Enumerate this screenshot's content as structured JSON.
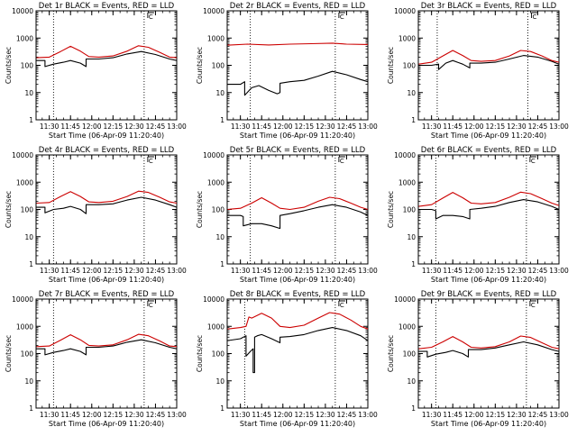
{
  "chart_data": [
    {
      "type": "line",
      "title": "Det 1r BLACK = Events, RED = LLD",
      "xlabel": "Start Time (06-Apr-09 11:20:40)",
      "ylabel": "Counts/sec",
      "x_ticks": [
        "11:30",
        "11:45",
        "12:00",
        "12:15",
        "12:30",
        "12:45",
        "13:00"
      ],
      "y_ticks": [
        "1",
        "10",
        "100",
        "1000",
        "10000"
      ],
      "xlim": [
        "11:20:40",
        "13:00:00"
      ],
      "ylim": [
        1,
        10000
      ],
      "y_scale": "log",
      "markers": [
        "11:33",
        "12:37"
      ],
      "corner_label": "C",
      "series": [
        {
          "color": "#000000",
          "x": [
            "11:21",
            "11:27",
            "11:27",
            "11:33",
            "11:40",
            "11:45",
            "11:52",
            "11:56",
            "11:56",
            "12:05",
            "12:15",
            "12:25",
            "12:35",
            "12:45",
            "12:55",
            "13:00"
          ],
          "values": [
            150,
            150,
            90,
            110,
            130,
            150,
            120,
            90,
            170,
            170,
            190,
            260,
            320,
            250,
            170,
            150
          ]
        },
        {
          "color": "#cc0000",
          "x": [
            "11:21",
            "11:30",
            "11:38",
            "11:45",
            "11:52",
            "11:58",
            "12:05",
            "12:15",
            "12:25",
            "12:33",
            "12:40",
            "12:48",
            "12:55",
            "13:00"
          ],
          "values": [
            190,
            200,
            320,
            500,
            330,
            210,
            200,
            220,
            330,
            520,
            460,
            300,
            200,
            190
          ]
        }
      ]
    },
    {
      "type": "line",
      "title": "Det 2r BLACK = Events, RED = LLD",
      "xlabel": "Start Time (06-Apr-09 11:20:40)",
      "ylabel": "Counts/sec",
      "x_ticks": [
        "11:30",
        "11:45",
        "12:00",
        "12:15",
        "12:30",
        "12:45",
        "13:00"
      ],
      "y_ticks": [
        "1",
        "10",
        "100",
        "1000",
        "10000"
      ],
      "xlim": [
        "11:20:40",
        "13:00:00"
      ],
      "ylim": [
        1,
        10000
      ],
      "y_scale": "log",
      "markers": [
        "11:37",
        "12:37"
      ],
      "corner_label": "C",
      "series": [
        {
          "color": "#000000",
          "x": [
            "11:21",
            "11:30",
            "11:33",
            "11:33",
            "11:38",
            "11:43",
            "11:50",
            "11:56",
            "11:58",
            "11:58",
            "12:05",
            "12:15",
            "12:25",
            "12:35",
            "12:45",
            "12:55",
            "13:00"
          ],
          "values": [
            20,
            20,
            25,
            8,
            15,
            18,
            12,
            9,
            10,
            22,
            25,
            28,
            40,
            60,
            45,
            30,
            25
          ]
        },
        {
          "color": "#cc0000",
          "x": [
            "11:21",
            "11:35",
            "11:50",
            "12:05",
            "12:20",
            "12:35",
            "12:45",
            "13:00"
          ],
          "values": [
            550,
            600,
            560,
            600,
            620,
            650,
            600,
            580
          ]
        }
      ]
    },
    {
      "type": "line",
      "title": "Det 3r BLACK = Events, RED = LLD",
      "xlabel": "Start Time (06-Apr-09 11:20:40)",
      "ylabel": "Counts/sec",
      "x_ticks": [
        "11:30",
        "11:45",
        "12:00",
        "12:15",
        "12:30",
        "12:45",
        "13:00"
      ],
      "y_ticks": [
        "1",
        "10",
        "100",
        "1000",
        "10000"
      ],
      "xlim": [
        "11:20:40",
        "13:00:00"
      ],
      "ylim": [
        1,
        10000
      ],
      "y_scale": "log",
      "markers": [
        "11:34",
        "12:38"
      ],
      "corner_label": "C",
      "series": [
        {
          "color": "#000000",
          "x": [
            "11:21",
            "11:30",
            "11:35",
            "11:35",
            "11:40",
            "11:45",
            "11:52",
            "11:57",
            "11:57",
            "12:05",
            "12:15",
            "12:25",
            "12:35",
            "12:45",
            "12:55",
            "13:00"
          ],
          "values": [
            100,
            100,
            110,
            70,
            120,
            150,
            110,
            80,
            120,
            120,
            130,
            170,
            230,
            200,
            140,
            110
          ]
        },
        {
          "color": "#cc0000",
          "x": [
            "11:21",
            "11:30",
            "11:38",
            "11:45",
            "11:52",
            "11:58",
            "12:05",
            "12:15",
            "12:25",
            "12:33",
            "12:40",
            "12:48",
            "12:55",
            "13:00"
          ],
          "values": [
            110,
            130,
            220,
            350,
            230,
            150,
            140,
            150,
            220,
            350,
            320,
            220,
            150,
            130
          ]
        }
      ]
    },
    {
      "type": "line",
      "title": "Det 4r BLACK = Events, RED = LLD",
      "xlabel": "Start Time (06-Apr-09 11:20:40)",
      "ylabel": "Counts/sec",
      "x_ticks": [
        "11:30",
        "11:45",
        "12:00",
        "12:15",
        "12:30",
        "12:45",
        "13:00"
      ],
      "y_ticks": [
        "1",
        "10",
        "100",
        "1000",
        "10000"
      ],
      "xlim": [
        "11:20:40",
        "13:00:00"
      ],
      "ylim": [
        1,
        10000
      ],
      "y_scale": "log",
      "markers": [
        "11:33",
        "12:37"
      ],
      "corner_label": "C",
      "series": [
        {
          "color": "#000000",
          "x": [
            "11:21",
            "11:27",
            "11:27",
            "11:33",
            "11:40",
            "11:45",
            "11:52",
            "11:56",
            "11:56",
            "12:05",
            "12:15",
            "12:25",
            "12:35",
            "12:45",
            "12:55",
            "13:00"
          ],
          "values": [
            120,
            120,
            75,
            100,
            110,
            130,
            100,
            70,
            150,
            150,
            160,
            220,
            280,
            220,
            150,
            120
          ]
        },
        {
          "color": "#cc0000",
          "x": [
            "11:21",
            "11:30",
            "11:38",
            "11:45",
            "11:52",
            "11:58",
            "12:05",
            "12:15",
            "12:25",
            "12:33",
            "12:40",
            "12:48",
            "12:55",
            "13:00"
          ],
          "values": [
            170,
            180,
            300,
            450,
            300,
            190,
            180,
            200,
            300,
            470,
            420,
            280,
            190,
            170
          ]
        }
      ]
    },
    {
      "type": "line",
      "title": "Det 5r BLACK = Events, RED = LLD",
      "xlabel": "Start Time (06-Apr-09 11:20:40)",
      "ylabel": "Counts/sec",
      "x_ticks": [
        "11:30",
        "11:45",
        "12:00",
        "12:15",
        "12:30",
        "12:45",
        "13:00"
      ],
      "y_ticks": [
        "1",
        "10",
        "100",
        "1000",
        "10000"
      ],
      "xlim": [
        "11:20:40",
        "13:00:00"
      ],
      "ylim": [
        1,
        10000
      ],
      "y_scale": "log",
      "markers": [
        "11:37",
        "12:37"
      ],
      "corner_label": "C",
      "series": [
        {
          "color": "#000000",
          "x": [
            "11:21",
            "11:30",
            "11:32",
            "11:32",
            "11:38",
            "11:45",
            "11:52",
            "11:58",
            "11:58",
            "12:05",
            "12:15",
            "12:25",
            "12:35",
            "12:45",
            "12:55",
            "13:00"
          ],
          "values": [
            60,
            60,
            55,
            25,
            30,
            30,
            25,
            20,
            60,
            70,
            90,
            120,
            150,
            120,
            80,
            60
          ]
        },
        {
          "color": "#cc0000",
          "x": [
            "11:21",
            "11:30",
            "11:38",
            "11:45",
            "11:52",
            "11:58",
            "12:05",
            "12:15",
            "12:25",
            "12:33",
            "12:40",
            "12:48",
            "12:55",
            "13:00"
          ],
          "values": [
            100,
            110,
            170,
            270,
            170,
            110,
            100,
            120,
            200,
            280,
            250,
            170,
            120,
            100
          ]
        }
      ]
    },
    {
      "type": "line",
      "title": "Det 6r BLACK = Events, RED = LLD",
      "xlabel": "Start Time (06-Apr-09 11:20:40)",
      "ylabel": "Counts/sec",
      "x_ticks": [
        "11:30",
        "11:45",
        "12:00",
        "12:15",
        "12:30",
        "12:45",
        "13:00"
      ],
      "y_ticks": [
        "1",
        "10",
        "100",
        "1000",
        "10000"
      ],
      "xlim": [
        "11:20:40",
        "13:00:00"
      ],
      "ylim": [
        1,
        10000
      ],
      "y_scale": "log",
      "markers": [
        "11:33",
        "12:37"
      ],
      "corner_label": "C",
      "series": [
        {
          "color": "#000000",
          "x": [
            "11:21",
            "11:30",
            "11:33",
            "11:33",
            "11:38",
            "11:45",
            "11:52",
            "11:57",
            "11:57",
            "12:05",
            "12:15",
            "12:25",
            "12:35",
            "12:45",
            "12:55",
            "13:00"
          ],
          "values": [
            100,
            100,
            90,
            45,
            60,
            60,
            55,
            45,
            100,
            110,
            130,
            180,
            230,
            190,
            130,
            100
          ]
        },
        {
          "color": "#cc0000",
          "x": [
            "11:21",
            "11:30",
            "11:38",
            "11:45",
            "11:52",
            "11:58",
            "12:05",
            "12:15",
            "12:25",
            "12:33",
            "12:40",
            "12:48",
            "12:55",
            "13:00"
          ],
          "values": [
            130,
            150,
            260,
            420,
            270,
            170,
            160,
            180,
            280,
            430,
            380,
            250,
            170,
            140
          ]
        }
      ]
    },
    {
      "type": "line",
      "title": "Det 7r BLACK = Events, RED = LLD",
      "xlabel": "Start Time (06-Apr-09 11:20:40)",
      "ylabel": "Counts/sec",
      "x_ticks": [
        "11:30",
        "11:45",
        "12:00",
        "12:15",
        "12:30",
        "12:45",
        "13:00"
      ],
      "y_ticks": [
        "1",
        "10",
        "100",
        "1000",
        "10000"
      ],
      "xlim": [
        "11:20:40",
        "13:00:00"
      ],
      "ylim": [
        1,
        10000
      ],
      "y_scale": "log",
      "markers": [
        "11:33",
        "12:37"
      ],
      "corner_label": "C",
      "series": [
        {
          "color": "#000000",
          "x": [
            "11:21",
            "11:27",
            "11:27",
            "11:33",
            "11:40",
            "11:45",
            "11:52",
            "11:56",
            "11:56",
            "12:05",
            "12:15",
            "12:25",
            "12:35",
            "12:45",
            "12:55",
            "13:00"
          ],
          "values": [
            150,
            150,
            90,
            110,
            130,
            150,
            120,
            90,
            170,
            170,
            190,
            260,
            320,
            250,
            170,
            150
          ]
        },
        {
          "color": "#cc0000",
          "x": [
            "11:21",
            "11:30",
            "11:38",
            "11:45",
            "11:52",
            "11:58",
            "12:05",
            "12:15",
            "12:25",
            "12:33",
            "12:40",
            "12:48",
            "12:55",
            "13:00"
          ],
          "values": [
            180,
            190,
            310,
            490,
            320,
            200,
            190,
            210,
            320,
            510,
            450,
            290,
            190,
            180
          ]
        }
      ]
    },
    {
      "type": "line",
      "title": "Det 8r BLACK = Events, RED = LLD",
      "xlabel": "Start Time (06-Apr-09 11:20:40)",
      "ylabel": "Counts/sec",
      "x_ticks": [
        "11:30",
        "11:45",
        "12:00",
        "12:15",
        "12:30",
        "12:45",
        "13:00"
      ],
      "y_ticks": [
        "1",
        "10",
        "100",
        "1000",
        "10000"
      ],
      "xlim": [
        "11:20:40",
        "13:00:00"
      ],
      "ylim": [
        1,
        10000
      ],
      "y_scale": "log",
      "markers": [
        "11:33",
        "12:37"
      ],
      "corner_label": "C",
      "series": [
        {
          "color": "#000000",
          "x": [
            "11:21",
            "11:30",
            "11:34",
            "11:34",
            "11:37",
            "11:39",
            "11:39",
            "11:40",
            "11:40",
            "11:42",
            "11:45",
            "11:52",
            "11:58",
            "11:58",
            "12:05",
            "12:15",
            "12:25",
            "12:35",
            "12:45",
            "12:55",
            "13:00"
          ],
          "values": [
            300,
            350,
            450,
            80,
            120,
            150,
            20,
            20,
            400,
            450,
            500,
            350,
            250,
            400,
            420,
            500,
            700,
            900,
            700,
            450,
            300
          ]
        },
        {
          "color": "#cc0000",
          "x": [
            "11:21",
            "11:30",
            "11:34",
            "11:36",
            "11:38",
            "11:45",
            "11:52",
            "11:58",
            "12:05",
            "12:15",
            "12:25",
            "12:33",
            "12:40",
            "12:48",
            "12:55",
            "13:00"
          ],
          "values": [
            800,
            900,
            1000,
            2200,
            2000,
            3000,
            2000,
            1000,
            900,
            1100,
            2000,
            3200,
            2800,
            1700,
            1000,
            800
          ]
        }
      ]
    },
    {
      "type": "line",
      "title": "Det 9r BLACK = Events, RED = LLD",
      "xlabel": "Start Time (06-Apr-09 11:20:40)",
      "ylabel": "Counts/sec",
      "x_ticks": [
        "11:30",
        "11:45",
        "12:00",
        "12:15",
        "12:30",
        "12:45",
        "13:00"
      ],
      "y_ticks": [
        "1",
        "10",
        "100",
        "1000",
        "10000"
      ],
      "xlim": [
        "11:20:40",
        "13:00:00"
      ],
      "ylim": [
        1,
        10000
      ],
      "y_scale": "log",
      "markers": [
        "11:33",
        "12:37"
      ],
      "corner_label": "C",
      "series": [
        {
          "color": "#000000",
          "x": [
            "11:21",
            "11:27",
            "11:27",
            "11:33",
            "11:40",
            "11:45",
            "11:52",
            "11:56",
            "11:56",
            "12:05",
            "12:15",
            "12:25",
            "12:35",
            "12:45",
            "12:55",
            "13:00"
          ],
          "values": [
            120,
            120,
            75,
            95,
            110,
            130,
            100,
            75,
            140,
            140,
            160,
            210,
            270,
            210,
            140,
            120
          ]
        },
        {
          "color": "#cc0000",
          "x": [
            "11:21",
            "11:30",
            "11:38",
            "11:45",
            "11:52",
            "11:58",
            "12:05",
            "12:15",
            "12:25",
            "12:33",
            "12:40",
            "12:48",
            "12:55",
            "13:00"
          ],
          "values": [
            150,
            170,
            270,
            420,
            270,
            170,
            160,
            180,
            270,
            440,
            390,
            250,
            170,
            150
          ]
        }
      ]
    }
  ]
}
